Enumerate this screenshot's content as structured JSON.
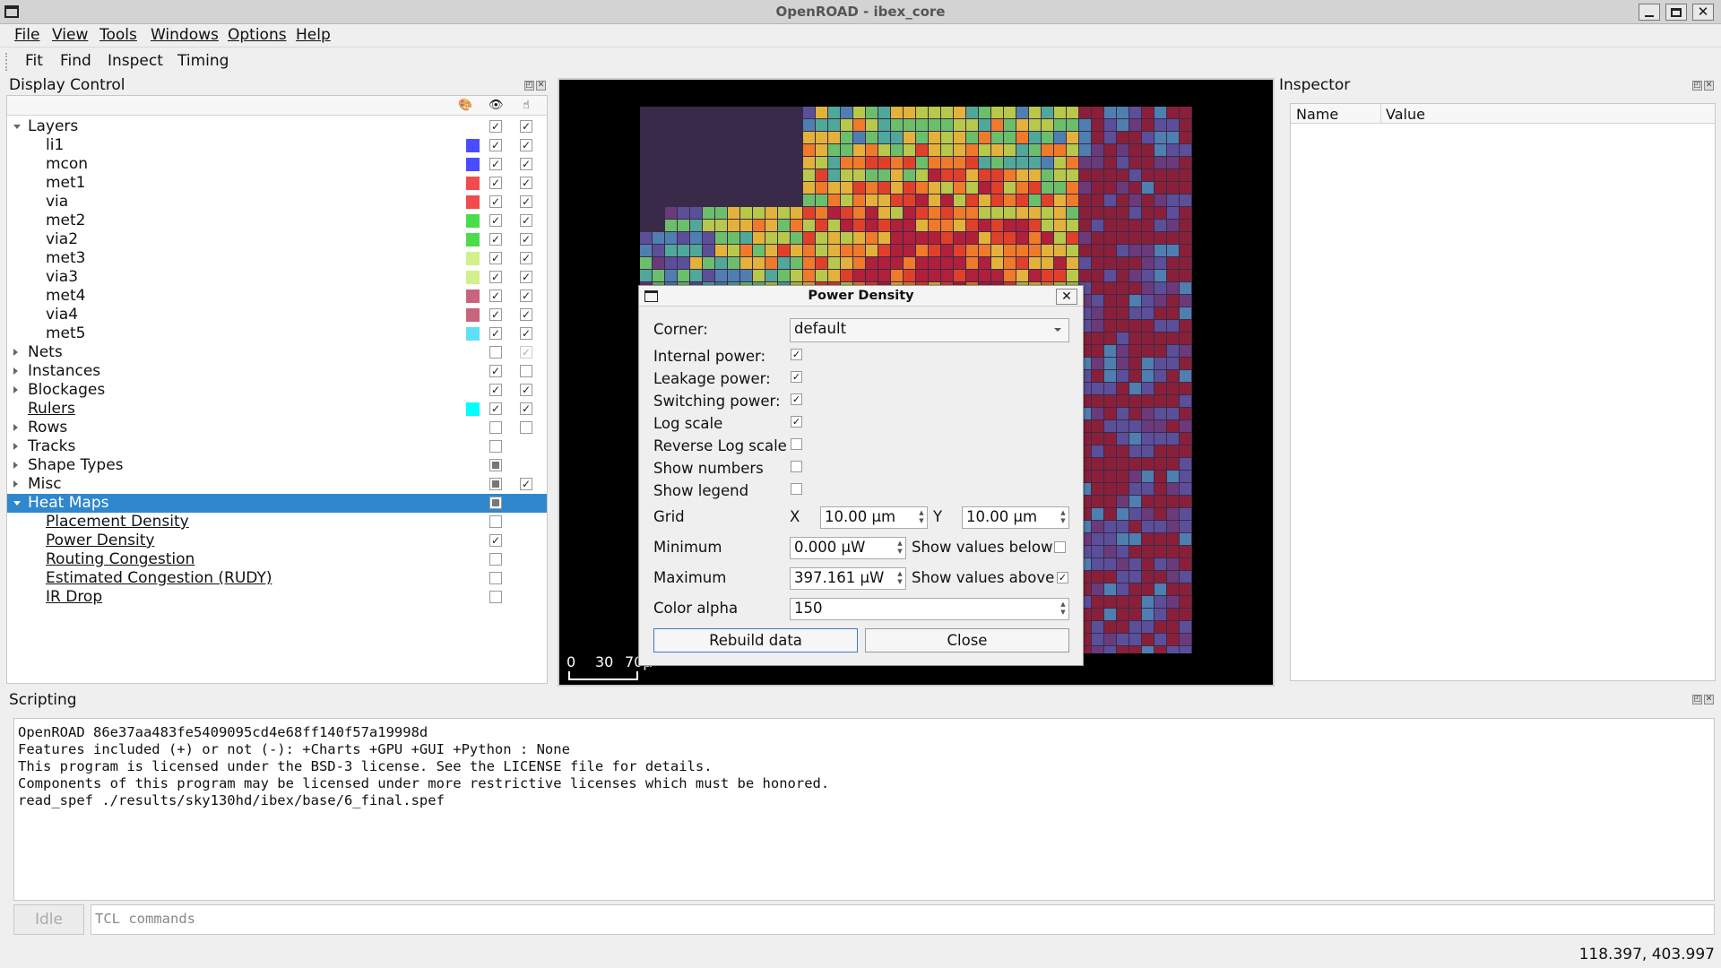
{
  "window": {
    "title": "OpenROAD - ibex_core"
  },
  "menu": [
    "File",
    "View",
    "Tools",
    "Windows",
    "Options",
    "Help"
  ],
  "toolbar": [
    "Fit",
    "Find",
    "Inspect",
    "Timing"
  ],
  "display_control": {
    "title": "Display Control",
    "header_icons": [
      "palette-icon",
      "eye-icon",
      "pointer-icon"
    ],
    "rows": [
      {
        "label": "Layers",
        "level": 0,
        "expand": "down",
        "color": null,
        "visible": "checked",
        "select": "checked",
        "link": false
      },
      {
        "label": "li1",
        "level": 1,
        "expand": null,
        "color": "#4b4bff",
        "visible": "checked",
        "select": "checked",
        "link": false
      },
      {
        "label": "mcon",
        "level": 1,
        "expand": null,
        "color": "#4b4bff",
        "visible": "checked",
        "select": "checked",
        "link": false
      },
      {
        "label": "met1",
        "level": 1,
        "expand": null,
        "color": "#f24b4b",
        "visible": "checked",
        "select": "checked",
        "link": false
      },
      {
        "label": "via",
        "level": 1,
        "expand": null,
        "color": "#f24b4b",
        "visible": "checked",
        "select": "checked",
        "link": false
      },
      {
        "label": "met2",
        "level": 1,
        "expand": null,
        "color": "#4bdc4b",
        "visible": "checked",
        "select": "checked",
        "link": false
      },
      {
        "label": "via2",
        "level": 1,
        "expand": null,
        "color": "#4bdc4b",
        "visible": "checked",
        "select": "checked",
        "link": false
      },
      {
        "label": "met3",
        "level": 1,
        "expand": null,
        "color": "#d2f08c",
        "visible": "checked",
        "select": "checked",
        "link": false
      },
      {
        "label": "via3",
        "level": 1,
        "expand": null,
        "color": "#d2f08c",
        "visible": "checked",
        "select": "checked",
        "link": false
      },
      {
        "label": "met4",
        "level": 1,
        "expand": null,
        "color": "#c8647d",
        "visible": "checked",
        "select": "checked",
        "link": false
      },
      {
        "label": "via4",
        "level": 1,
        "expand": null,
        "color": "#c8647d",
        "visible": "checked",
        "select": "checked",
        "link": false
      },
      {
        "label": "met5",
        "level": 1,
        "expand": null,
        "color": "#5fe1f5",
        "visible": "checked",
        "select": "checked",
        "link": false
      },
      {
        "label": "Nets",
        "level": 0,
        "expand": "right",
        "color": null,
        "visible": "unchecked",
        "select": "checked-dim",
        "link": false
      },
      {
        "label": "Instances",
        "level": 0,
        "expand": "right",
        "color": null,
        "visible": "checked",
        "select": "unchecked",
        "link": false
      },
      {
        "label": "Blockages",
        "level": 0,
        "expand": "right",
        "color": null,
        "visible": "checked",
        "select": "checked",
        "link": false
      },
      {
        "label": "Rulers",
        "level": 0,
        "expand": null,
        "color": "#00ffff",
        "visible": "checked",
        "select": "checked",
        "link": true
      },
      {
        "label": "Rows",
        "level": 0,
        "expand": "right",
        "color": null,
        "visible": "unchecked",
        "select": "unchecked",
        "link": false
      },
      {
        "label": "Tracks",
        "level": 0,
        "expand": "right",
        "color": null,
        "visible": "unchecked",
        "select": "none",
        "link": false
      },
      {
        "label": "Shape Types",
        "level": 0,
        "expand": "right",
        "color": null,
        "visible": "partial",
        "select": "none",
        "link": false
      },
      {
        "label": "Misc",
        "level": 0,
        "expand": "right",
        "color": null,
        "visible": "partial",
        "select": "checked",
        "link": false
      },
      {
        "label": "Heat Maps",
        "level": 0,
        "expand": "down",
        "color": null,
        "visible": "partial",
        "select": "none",
        "link": false,
        "selected": true
      },
      {
        "label": "Placement Density",
        "level": 1,
        "expand": null,
        "color": null,
        "visible": "unchecked",
        "select": "none",
        "link": true
      },
      {
        "label": "Power Density",
        "level": 1,
        "expand": null,
        "color": null,
        "visible": "checked",
        "select": "none",
        "link": true
      },
      {
        "label": "Routing Congestion",
        "level": 1,
        "expand": null,
        "color": null,
        "visible": "unchecked",
        "select": "none",
        "link": true
      },
      {
        "label": "Estimated Congestion (RUDY)",
        "level": 1,
        "expand": null,
        "color": null,
        "visible": "unchecked",
        "select": "none",
        "link": true
      },
      {
        "label": "IR Drop",
        "level": 1,
        "expand": null,
        "color": null,
        "visible": "unchecked",
        "select": "none",
        "link": true
      }
    ]
  },
  "layout_view": {
    "scale_labels": [
      "0",
      "30",
      "70"
    ],
    "scale_unit": "µ"
  },
  "inspector": {
    "title": "Inspector",
    "columns": [
      "Name",
      "Value"
    ]
  },
  "scripting": {
    "title": "Scripting",
    "lines": [
      "OpenROAD 86e37aa483fe5409095cd4e68ff140f57a19998d",
      "Features included (+) or not (-): +Charts +GPU +GUI +Python : None",
      "This program is licensed under the BSD-3 license. See the LICENSE file for details.",
      "Components of this program may be licensed under more restrictive licenses which must be honored.",
      "read_spef ./results/sky130hd/ibex/base/6_final.spef"
    ],
    "status_button": "Idle",
    "input_placeholder": "TCL commands"
  },
  "status_bar": {
    "coordinates": "118.397, 403.997"
  },
  "dialog": {
    "title": "Power Density",
    "corner_label": "Corner:",
    "corner_value": "default",
    "checks": [
      {
        "label": "Internal power:",
        "checked": true
      },
      {
        "label": "Leakage power:",
        "checked": true
      },
      {
        "label": "Switching power:",
        "checked": true
      },
      {
        "label": "Log scale",
        "checked": true
      },
      {
        "label": "Reverse Log scale",
        "checked": false
      },
      {
        "label": "Show numbers",
        "checked": false
      },
      {
        "label": "Show legend",
        "checked": false
      }
    ],
    "grid_label": "Grid",
    "grid_x_label": "X",
    "grid_x": "10.00 µm",
    "grid_y_label": "Y",
    "grid_y": "10.00 µm",
    "minimum_label": "Minimum",
    "minimum": "0.000 µW",
    "show_below_label": "Show values below",
    "show_below": false,
    "maximum_label": "Maximum",
    "maximum": "397.161 µW",
    "show_above_label": "Show values above",
    "show_above": true,
    "alpha_label": "Color alpha",
    "alpha": "150",
    "rebuild_label": "Rebuild data",
    "close_label": "Close"
  }
}
